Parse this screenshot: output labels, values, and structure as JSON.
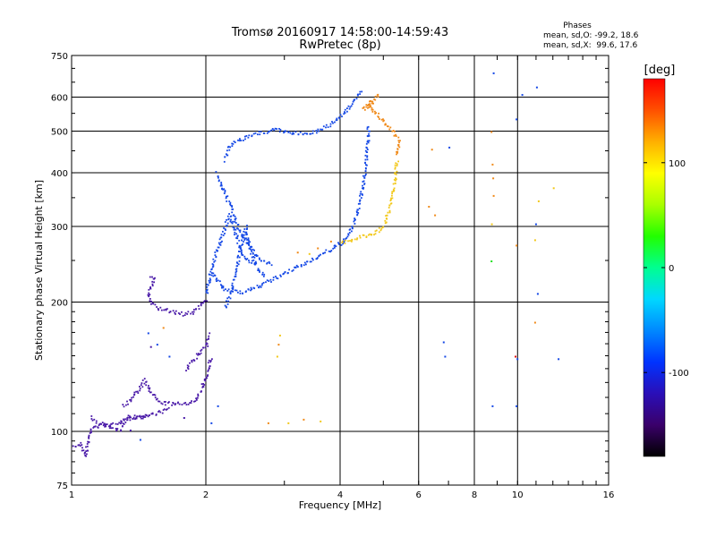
{
  "chart_data": {
    "type": "scatter",
    "title": "Tromsø 20160917 14:58:00-14:59:43",
    "subtitle": "RwPretec (8p)",
    "xlabel": "Frequency [MHz]",
    "ylabel": "Stationary phase Virtual Height [km]",
    "x_scale": "log",
    "y_scale": "log",
    "xlim": [
      1,
      16
    ],
    "ylim": [
      75,
      750
    ],
    "x_ticks": [
      1,
      2,
      4,
      6,
      8,
      10,
      16
    ],
    "y_ticks": [
      75,
      100,
      200,
      300,
      400,
      500,
      600,
      750
    ],
    "grid": true,
    "stats": {
      "title": "Phases",
      "line1": "mean, sd,O: -99.2, 18.6",
      "line2": "mean, sd,X:  99.6, 17.6"
    },
    "colorbar": {
      "label": "[deg]",
      "range": [
        -180,
        180
      ],
      "ticks": [
        100,
        0,
        -100
      ],
      "colors": [
        "#000000",
        "#3a006a",
        "#2a0fb8",
        "#0033ff",
        "#0088ff",
        "#00d8ff",
        "#00ff90",
        "#22ff00",
        "#aaff00",
        "#ffff00",
        "#ffb000",
        "#ff5000",
        "#ff0000"
      ]
    },
    "trace_phase_colors": {
      "low": "#4a1aa8",
      "blue": "#1448e6",
      "yellow": "#f2c81a",
      "orange": "#f08a1a"
    },
    "traces": [
      {
        "color": "low",
        "points": [
          [
            1.0,
            92
          ],
          [
            1.02,
            93
          ],
          [
            1.04,
            94
          ],
          [
            1.07,
            88
          ],
          [
            1.1,
            102
          ],
          [
            1.13,
            103
          ],
          [
            1.17,
            104
          ],
          [
            1.21,
            104
          ],
          [
            1.25,
            104
          ],
          [
            1.28,
            105
          ],
          [
            1.31,
            108
          ],
          [
            1.35,
            109
          ],
          [
            1.4,
            108
          ],
          [
            1.45,
            109
          ],
          [
            1.5,
            110
          ],
          [
            1.55,
            111
          ],
          [
            1.6,
            112
          ],
          [
            1.65,
            114
          ]
        ]
      },
      {
        "color": "low",
        "points": [
          [
            1.1,
            108
          ],
          [
            1.13,
            106
          ],
          [
            1.17,
            104
          ],
          [
            1.22,
            103
          ],
          [
            1.26,
            101
          ],
          [
            1.29,
            102
          ],
          [
            1.32,
            106
          ],
          [
            1.36,
            108
          ],
          [
            1.42,
            109
          ],
          [
            1.48,
            110
          ]
        ]
      },
      {
        "color": "low",
        "points": [
          [
            1.3,
            115
          ],
          [
            1.34,
            118
          ],
          [
            1.38,
            123
          ],
          [
            1.42,
            126
          ],
          [
            1.45,
            132
          ],
          [
            1.5,
            124
          ],
          [
            1.55,
            118
          ],
          [
            1.6,
            117
          ],
          [
            1.7,
            116
          ],
          [
            1.8,
            117
          ],
          [
            1.9,
            118
          ],
          [
            1.95,
            126
          ],
          [
            2.0,
            136
          ],
          [
            2.05,
            150
          ]
        ]
      },
      {
        "color": "low",
        "points": [
          [
            1.5,
            230
          ],
          [
            1.53,
            228
          ],
          [
            1.5,
            218
          ],
          [
            1.48,
            208
          ],
          [
            1.51,
            200
          ],
          [
            1.56,
            194
          ],
          [
            1.62,
            192
          ],
          [
            1.7,
            190
          ],
          [
            1.78,
            188
          ],
          [
            1.86,
            190
          ],
          [
            1.94,
            197
          ],
          [
            2.0,
            205
          ]
        ]
      },
      {
        "color": "low",
        "points": [
          [
            1.8,
            140
          ],
          [
            1.85,
            145
          ],
          [
            1.9,
            150
          ],
          [
            1.95,
            155
          ],
          [
            2.0,
            160
          ],
          [
            2.03,
            170
          ]
        ]
      },
      {
        "color": "blue",
        "points": [
          [
            2.05,
            235
          ],
          [
            2.1,
            228
          ],
          [
            2.15,
            220
          ],
          [
            2.2,
            214
          ],
          [
            2.3,
            214
          ],
          [
            2.4,
            212
          ],
          [
            2.5,
            215
          ],
          [
            2.6,
            218
          ],
          [
            2.7,
            222
          ],
          [
            2.8,
            226
          ],
          [
            2.9,
            230
          ],
          [
            3.0,
            234
          ],
          [
            3.1,
            238
          ],
          [
            3.2,
            242
          ],
          [
            3.3,
            246
          ],
          [
            3.4,
            250
          ],
          [
            3.5,
            254
          ],
          [
            3.6,
            258
          ],
          [
            3.7,
            262
          ],
          [
            3.8,
            266
          ],
          [
            3.9,
            270
          ],
          [
            4.0,
            275
          ],
          [
            4.1,
            282
          ],
          [
            4.2,
            292
          ],
          [
            4.3,
            310
          ],
          [
            4.4,
            340
          ],
          [
            4.5,
            380
          ],
          [
            4.55,
            420
          ],
          [
            4.6,
            470
          ],
          [
            4.62,
            520
          ]
        ]
      },
      {
        "color": "blue",
        "points": [
          [
            2.1,
            400
          ],
          [
            2.15,
            380
          ],
          [
            2.2,
            360
          ],
          [
            2.25,
            340
          ],
          [
            2.3,
            320
          ],
          [
            2.35,
            300
          ],
          [
            2.4,
            290
          ],
          [
            2.45,
            280
          ],
          [
            2.5,
            270
          ],
          [
            2.55,
            262
          ],
          [
            2.6,
            256
          ],
          [
            2.7,
            250
          ],
          [
            2.8,
            245
          ]
        ]
      },
      {
        "color": "blue",
        "points": [
          [
            2.2,
            195
          ],
          [
            2.25,
            205
          ],
          [
            2.3,
            225
          ],
          [
            2.35,
            250
          ],
          [
            2.4,
            275
          ],
          [
            2.45,
            300
          ],
          [
            2.5,
            270
          ],
          [
            2.6,
            240
          ],
          [
            2.7,
            230
          ]
        ]
      },
      {
        "color": "blue",
        "points": [
          [
            2.2,
            430
          ],
          [
            2.25,
            460
          ],
          [
            2.3,
            470
          ],
          [
            2.4,
            480
          ],
          [
            2.5,
            490
          ],
          [
            2.6,
            495
          ],
          [
            2.7,
            500
          ],
          [
            2.8,
            505
          ],
          [
            2.9,
            505
          ],
          [
            3.0,
            500
          ],
          [
            3.2,
            495
          ],
          [
            3.4,
            498
          ],
          [
            3.6,
            505
          ],
          [
            3.8,
            520
          ],
          [
            4.0,
            545
          ],
          [
            4.2,
            575
          ],
          [
            4.35,
            605
          ],
          [
            4.45,
            630
          ]
        ]
      },
      {
        "color": "blue",
        "points": [
          [
            2.0,
            210
          ],
          [
            2.05,
            240
          ],
          [
            2.1,
            260
          ],
          [
            2.15,
            280
          ],
          [
            2.2,
            300
          ],
          [
            2.25,
            320
          ],
          [
            2.3,
            300
          ],
          [
            2.35,
            280
          ],
          [
            2.4,
            260
          ],
          [
            2.5,
            250
          ],
          [
            2.6,
            245
          ]
        ]
      },
      {
        "color": "yellow",
        "points": [
          [
            4.0,
            276
          ],
          [
            4.1,
            278
          ],
          [
            4.2,
            280
          ],
          [
            4.3,
            282
          ],
          [
            4.4,
            284
          ],
          [
            4.5,
            286
          ],
          [
            4.6,
            288
          ],
          [
            4.7,
            290
          ],
          [
            4.8,
            292
          ],
          [
            4.9,
            296
          ],
          [
            5.0,
            302
          ],
          [
            5.05,
            310
          ],
          [
            5.1,
            322
          ],
          [
            5.15,
            335
          ],
          [
            5.2,
            350
          ],
          [
            5.25,
            370
          ],
          [
            5.3,
            395
          ],
          [
            5.35,
            430
          ]
        ]
      },
      {
        "color": "orange",
        "points": [
          [
            5.35,
            440
          ],
          [
            5.38,
            460
          ],
          [
            5.4,
            480
          ],
          [
            4.6,
            580
          ],
          [
            4.7,
            590
          ],
          [
            4.5,
            570
          ],
          [
            4.55,
            565
          ],
          [
            4.8,
            600
          ],
          [
            4.9,
            610
          ]
        ]
      }
    ],
    "scatter_points": [
      [
        1.48,
        170,
        "blue"
      ],
      [
        1.55,
        160,
        "blue"
      ],
      [
        1.6,
        175,
        "orange"
      ],
      [
        1.65,
        150,
        "blue"
      ],
      [
        1.5,
        158,
        "low"
      ],
      [
        2.05,
        105,
        "blue"
      ],
      [
        2.12,
        115,
        "blue"
      ],
      [
        1.78,
        108,
        "low"
      ],
      [
        1.42,
        96,
        "blue"
      ],
      [
        1.35,
        101,
        "low"
      ],
      [
        2.75,
        105,
        "orange"
      ],
      [
        3.05,
        105,
        "yellow"
      ],
      [
        3.3,
        107,
        "orange"
      ],
      [
        3.6,
        106,
        "yellow"
      ],
      [
        2.88,
        150,
        "yellow"
      ],
      [
        2.9,
        160,
        "orange"
      ],
      [
        2.92,
        168,
        "yellow"
      ],
      [
        3.2,
        262,
        "orange"
      ],
      [
        3.4,
        260,
        "yellow"
      ],
      [
        3.55,
        268,
        "orange"
      ],
      [
        3.8,
        278,
        "orange"
      ],
      [
        6.4,
        455,
        "orange"
      ],
      [
        6.3,
        335,
        "orange"
      ],
      [
        6.5,
        320,
        "orange"
      ],
      [
        7.0,
        460,
        "blue"
      ],
      [
        6.85,
        150,
        "blue"
      ],
      [
        6.8,
        162,
        "blue"
      ],
      [
        8.7,
        500,
        "orange"
      ],
      [
        8.75,
        420,
        "orange"
      ],
      [
        8.78,
        390,
        "orange"
      ],
      [
        8.8,
        355,
        "orange"
      ],
      [
        8.72,
        305,
        "yellow"
      ],
      [
        8.7,
        250,
        "green"
      ],
      [
        8.8,
        685,
        "blue"
      ],
      [
        8.75,
        115,
        "blue"
      ],
      [
        9.9,
        272,
        "orange"
      ],
      [
        9.85,
        150,
        "red"
      ],
      [
        9.95,
        148,
        "blue"
      ],
      [
        9.9,
        115,
        "blue"
      ],
      [
        10.2,
        610,
        "blue"
      ],
      [
        9.9,
        535,
        "blue"
      ],
      [
        11.0,
        635,
        "blue"
      ],
      [
        11.1,
        345,
        "yellow"
      ],
      [
        10.9,
        280,
        "yellow"
      ],
      [
        10.95,
        305,
        "blue"
      ],
      [
        11.05,
        210,
        "blue"
      ],
      [
        10.9,
        180,
        "orange"
      ],
      [
        12.0,
        370,
        "yellow"
      ],
      [
        12.3,
        148,
        "blue"
      ]
    ]
  }
}
